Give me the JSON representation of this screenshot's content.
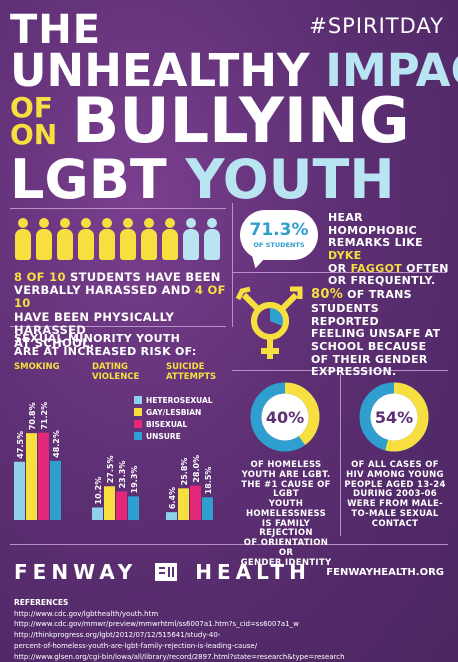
{
  "hashtag": "#SPIRITDAY",
  "title": {
    "line1": "THE",
    "line2a": "UNHEALTHY",
    "line2b": "IMPACT",
    "of": "OF",
    "on": "ON",
    "bullying": "BULLYING",
    "lgbt": "LGBT",
    "youth": "YOUTH"
  },
  "harassment": {
    "line1a": "8 OF 10",
    "line1b": " STUDENTS HAVE BEEN",
    "line2": "VERBALLY HARASSED AND ",
    "line2b": "4 OF 10",
    "line3": "HAVE BEEN PHYSICALLY HARASSED",
    "line4": "AT SCHOOL.",
    "figures_total": 10,
    "figures_highlighted": 8
  },
  "homophobic": {
    "percent": "71.3%",
    "sub": "OF STUDENTS",
    "line1": "HEAR HOMOPHOBIC",
    "line2a": "REMARKS LIKE ",
    "word1": "DYKE",
    "line3a": "OR ",
    "word2": "FAGGOT",
    "line3b": " OFTEN",
    "line4": "OR FREQUENTLY."
  },
  "trans": {
    "percent": "80%",
    "line1": " OF TRANS",
    "line2": "STUDENTS REPORTED",
    "line3": "FEELING UNSAFE AT",
    "line4": "SCHOOL BECAUSE",
    "line5": "OF THEIR GENDER",
    "line6": "EXPRESSION."
  },
  "risk": {
    "heading1": "SEXUAL MINORITY YOUTH",
    "heading2": "ARE AT INCREASED RISK OF:"
  },
  "chart_data": {
    "type": "bar",
    "categories": [
      "SMOKING",
      "DATING VIOLENCE",
      "SUICIDE ATTEMPTS"
    ],
    "category_lines": [
      [
        "SMOKING"
      ],
      [
        "DATING",
        "VIOLENCE"
      ],
      [
        "SUICIDE",
        "ATTEMPTS"
      ]
    ],
    "series": [
      {
        "name": "HETEROSEXUAL",
        "color": "#8ed1e8",
        "values": [
          47.5,
          10.2,
          6.4
        ],
        "labels": [
          "47.5%",
          "10.2%",
          "6.4%"
        ]
      },
      {
        "name": "GAY/LESBIAN",
        "color": "#f7df3f",
        "values": [
          70.8,
          27.5,
          25.8
        ],
        "labels": [
          "70.8%",
          "27.5%",
          "25.8%"
        ]
      },
      {
        "name": "BISEXUAL",
        "color": "#e3277a",
        "values": [
          71.2,
          23.3,
          28.0
        ],
        "labels": [
          "71.2%",
          "23.3%",
          "28.0%"
        ]
      },
      {
        "name": "UNSURE",
        "color": "#2f9fcf",
        "values": [
          48.2,
          19.3,
          18.5
        ],
        "labels": [
          "48.2%",
          "19.3%",
          "18.5%"
        ]
      }
    ],
    "ylim": [
      0,
      75
    ]
  },
  "homeless": {
    "percent": "40%",
    "value": 40,
    "lines": [
      "OF HOMELESS",
      "YOUTH ARE LGBT.",
      "THE #1 CAUSE OF LGBT",
      "YOUTH HOMELESSNESS",
      "IS FAMILY REJECTION",
      "OF ORIENTATION OR",
      "GENDER IDENTITY"
    ]
  },
  "hiv": {
    "percent": "54%",
    "value": 54,
    "lines": [
      "OF ALL CASES OF",
      "HIV AMONG YOUNG",
      "PEOPLE AGED 13-24",
      "DURING 2003-06",
      "WERE FROM MALE-",
      "TO-MALE SEXUAL",
      "CONTACT"
    ]
  },
  "footer": {
    "brand_left": "FENWAY",
    "brand_right": "HEALTH",
    "url": "FENWAYHEALTH.ORG",
    "refs_heading": "REFERENCES",
    "refs": [
      "http://www.cdc.gov/lgbthealth/youth.htm",
      "http://www.cdc.gov/mmwr/preview/mmwrhtml/ss6007a1.htm?s_cid=ss6007a1_w",
      "http://thinkprogress.org/lgbt/2012/07/12/515641/study-40-",
      "percent-of-homeless-youth-are-lgbt-family-rejection-is-leading-cause/",
      "http://www.glsen.org/cgi-bin/iowa/all/library/record/2897.html?state=research&type=research"
    ]
  },
  "colors": {
    "yellow": "#f7df3f",
    "light_blue": "#b9e4f2",
    "donut_blue": "#2f9fcf",
    "purple": "#5d2f73"
  }
}
